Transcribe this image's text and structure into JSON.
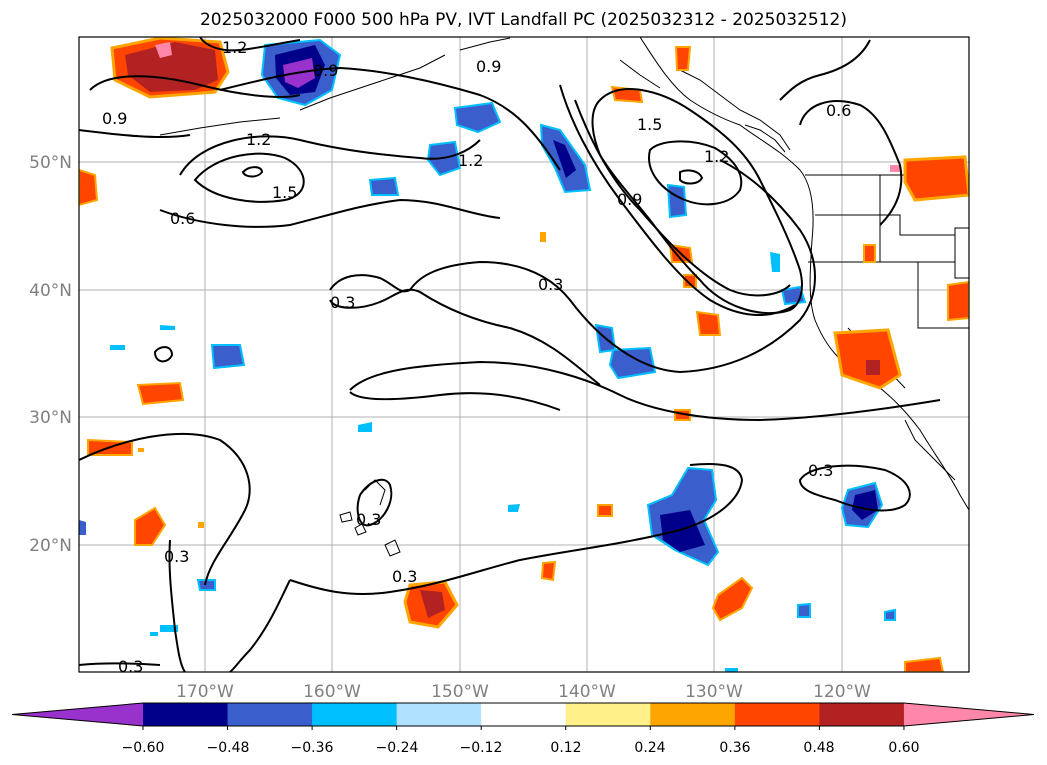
{
  "title": "2025032000 F000 500 hPa PV, IVT Landfall PC (2025032312 - 2025032512)",
  "longitude_ticks": [
    "170°W",
    "160°W",
    "150°W",
    "140°W",
    "130°W",
    "120°W"
  ],
  "latitude_ticks": [
    "50°N",
    "40°N",
    "30°N",
    "20°N"
  ],
  "colorbar": {
    "tick_labels": [
      "−0.60",
      "−0.48",
      "−0.36",
      "−0.24",
      "−0.12",
      "0.12",
      "0.24",
      "0.36",
      "0.48",
      "0.60"
    ],
    "colors": [
      "#9932cc",
      "#00008b",
      "#3a5fcd",
      "#00bfff",
      "#b0e2ff",
      "#ffffff",
      "#fff08a",
      "#ffa500",
      "#ff4500",
      "#b22222",
      "#ff88aa"
    ]
  },
  "contour_labels": [
    "1.2",
    "0.9",
    "0.9",
    "1.2",
    "1.5",
    "0.6",
    "0.9",
    "1.2",
    "0.3",
    "0.3",
    "1.5",
    "1.2",
    "0.9",
    "0.6",
    "0.3",
    "0.3",
    "0.3",
    "0.3",
    "0.3"
  ]
}
